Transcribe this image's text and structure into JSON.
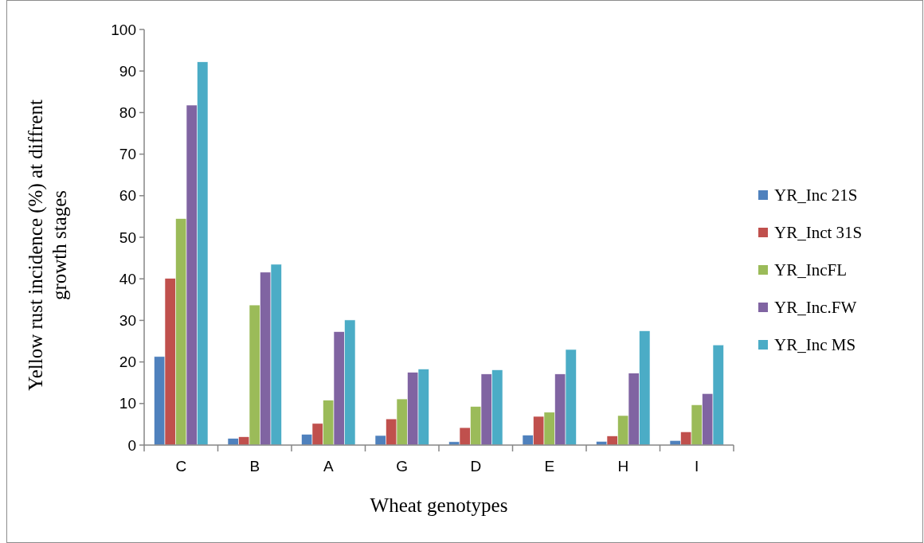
{
  "chart_data": {
    "type": "bar",
    "xlabel": "Wheat genotypes",
    "ylabel": "Yellow rust incidence (%) at diffrent growth stages",
    "categories": [
      "C",
      "B",
      "A",
      "G",
      "D",
      "E",
      "H",
      "I"
    ],
    "series": [
      {
        "name": "YR_Inc 21S",
        "color": "#4f81bd",
        "values": [
          21.3,
          1.6,
          2.6,
          2.3,
          0.8,
          2.4,
          0.9,
          1.1
        ]
      },
      {
        "name": "YR_Inct 31S",
        "color": "#c0504d",
        "values": [
          40.1,
          2.0,
          5.2,
          6.3,
          4.2,
          6.9,
          2.2,
          3.2
        ]
      },
      {
        "name": "YR_IncFL",
        "color": "#9bbb59",
        "values": [
          54.5,
          33.7,
          10.8,
          11.1,
          9.3,
          7.9,
          7.1,
          9.7
        ]
      },
      {
        "name": "YR_Inc.FW",
        "color": "#8064a2",
        "values": [
          81.8,
          41.6,
          27.3,
          17.5,
          17.1,
          17.1,
          17.3,
          12.4
        ]
      },
      {
        "name": "YR_Inc MS",
        "color": "#4bacc6",
        "values": [
          92.2,
          43.5,
          30.1,
          18.3,
          18.1,
          23.0,
          27.5,
          24.1
        ]
      }
    ],
    "ylim": [
      0,
      100
    ],
    "yticks": [
      0,
      10,
      20,
      30,
      40,
      50,
      60,
      70,
      80,
      90,
      100
    ],
    "grid": false,
    "legend": "right"
  }
}
